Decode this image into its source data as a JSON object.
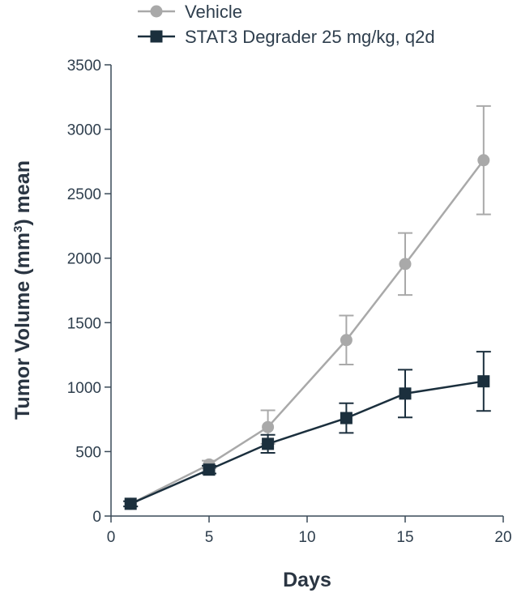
{
  "chart_data": {
    "type": "line",
    "title": "",
    "xlabel": "Days",
    "ylabel_main": "Tumor Volume (mm",
    "ylabel_sup": "3",
    "ylabel_tail": ") mean",
    "xlim": [
      0,
      20
    ],
    "ylim": [
      0,
      3500
    ],
    "x_ticks": [
      "0",
      "5",
      "10",
      "15",
      "20"
    ],
    "y_ticks": [
      "0",
      "500",
      "1000",
      "1500",
      "2000",
      "2500",
      "3000",
      "3500"
    ],
    "grid": false,
    "legend_position": "top-left",
    "series": [
      {
        "name": "Vehicle",
        "color": "#a9a9a9",
        "marker": "circle",
        "x": [
          1,
          5,
          8,
          12,
          15,
          19
        ],
        "y": [
          95,
          400,
          690,
          1365,
          1955,
          2760
        ],
        "err": [
          20,
          30,
          130,
          190,
          240,
          420
        ]
      },
      {
        "name": "STAT3 Degrader 25 mg/kg, q2d",
        "color": "#1b2f3d",
        "marker": "square",
        "x": [
          1,
          5,
          8,
          12,
          15,
          19
        ],
        "y": [
          95,
          360,
          560,
          760,
          950,
          1045
        ],
        "err": [
          20,
          30,
          70,
          115,
          185,
          230
        ]
      }
    ]
  }
}
